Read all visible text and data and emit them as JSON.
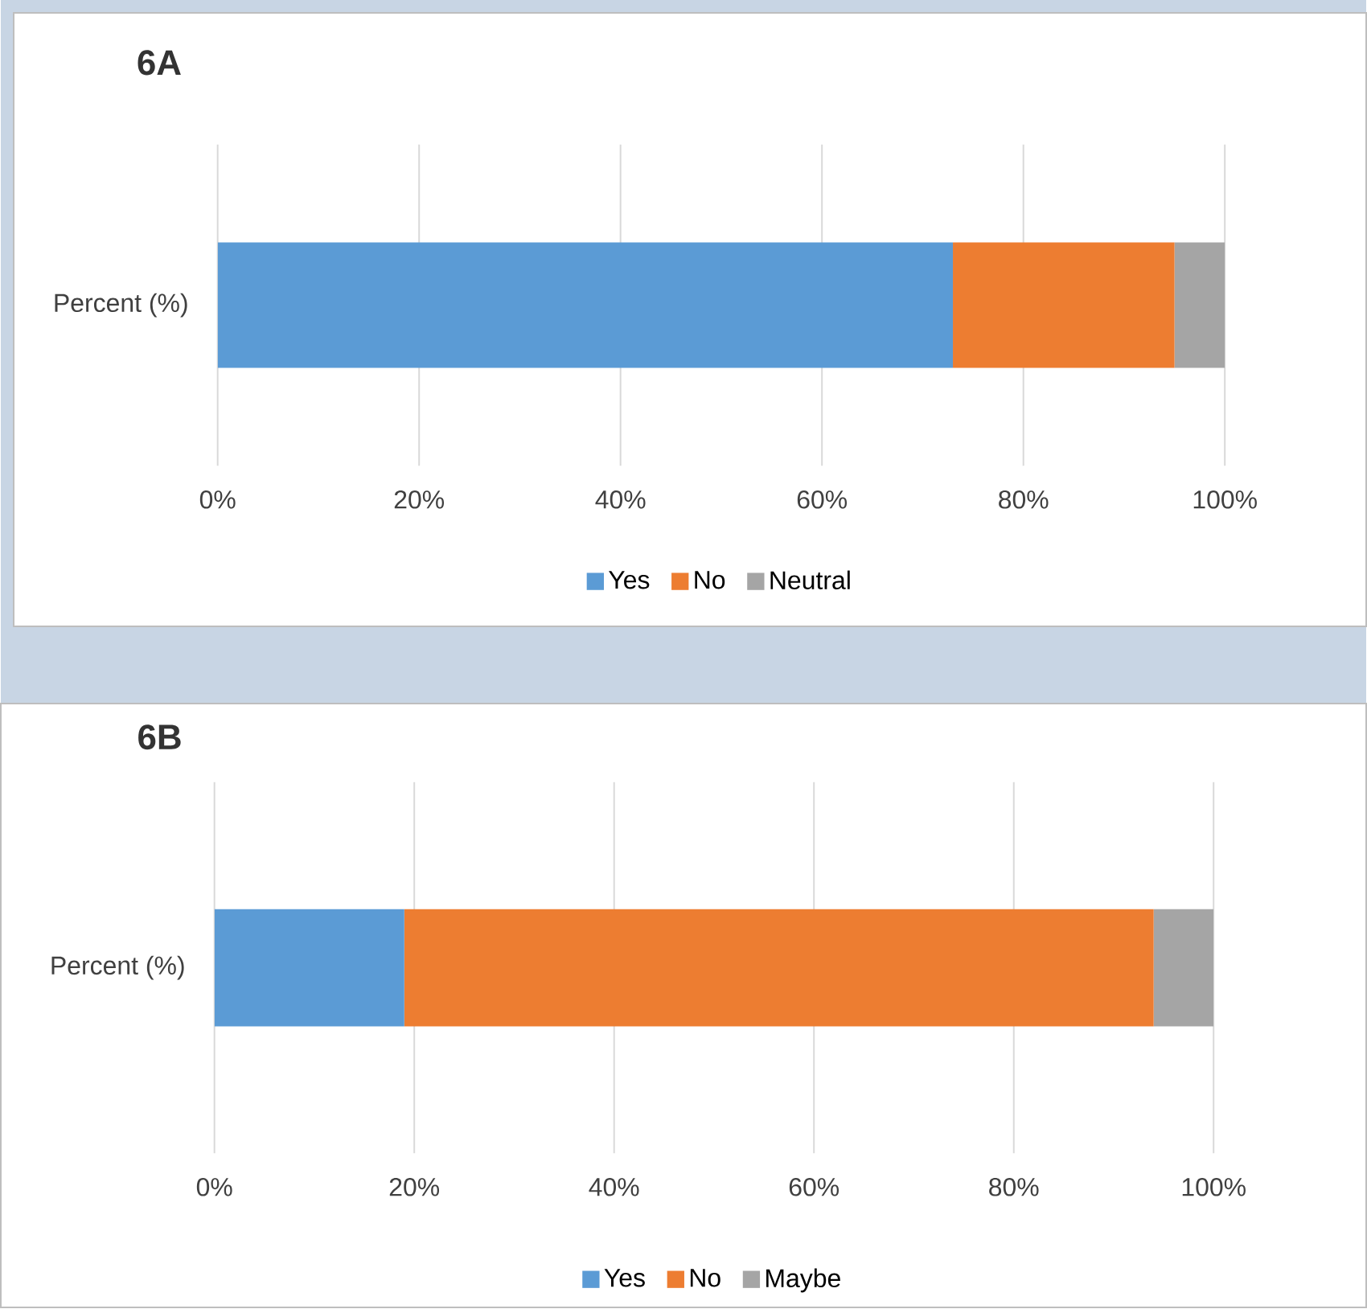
{
  "chart_data": [
    {
      "type": "bar",
      "title": "6A",
      "orientation": "horizontal",
      "stacked": true,
      "categories": [
        "Percent (%)"
      ],
      "series": [
        {
          "name": "Yes",
          "color": "#5b9bd5",
          "values": [
            73
          ]
        },
        {
          "name": "No",
          "color": "#ed7d31",
          "values": [
            22
          ]
        },
        {
          "name": "Neutral",
          "color": "#a5a5a5",
          "values": [
            5
          ]
        }
      ],
      "xlim": [
        0,
        100
      ],
      "xticks": [
        {
          "value": 0,
          "label": "0%"
        },
        {
          "value": 20,
          "label": "20%"
        },
        {
          "value": 40,
          "label": "40%"
        },
        {
          "value": 60,
          "label": "60%"
        },
        {
          "value": 80,
          "label": "80%"
        },
        {
          "value": 100,
          "label": "100%"
        }
      ],
      "grid": "x",
      "legend": "bottom"
    },
    {
      "type": "bar",
      "title": "6B",
      "orientation": "horizontal",
      "stacked": true,
      "categories": [
        "Percent (%)"
      ],
      "series": [
        {
          "name": "Yes",
          "color": "#5b9bd5",
          "values": [
            19
          ]
        },
        {
          "name": "No",
          "color": "#ed7d31",
          "values": [
            75
          ]
        },
        {
          "name": "Maybe",
          "color": "#a5a5a5",
          "values": [
            6
          ]
        }
      ],
      "xlim": [
        0,
        100
      ],
      "xticks": [
        {
          "value": 0,
          "label": "0%"
        },
        {
          "value": 20,
          "label": "20%"
        },
        {
          "value": 40,
          "label": "40%"
        },
        {
          "value": 60,
          "label": "60%"
        },
        {
          "value": 80,
          "label": "80%"
        },
        {
          "value": 100,
          "label": "100%"
        }
      ],
      "grid": "x",
      "legend": "bottom"
    }
  ]
}
